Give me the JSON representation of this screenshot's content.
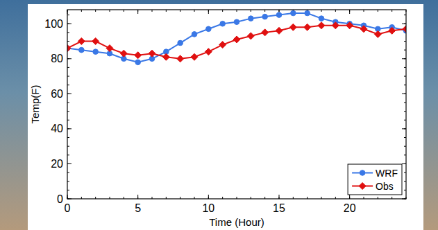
{
  "chart_data": {
    "type": "line",
    "x_label": "Time (Hour)",
    "y_label": "Temp(F)",
    "x": [
      0,
      1,
      2,
      3,
      4,
      5,
      6,
      7,
      8,
      9,
      10,
      11,
      12,
      13,
      14,
      15,
      16,
      17,
      18,
      19,
      20,
      21,
      22,
      23,
      24
    ],
    "series": [
      {
        "name": "WRF",
        "color": "#3a78e6",
        "marker": "circle",
        "line_style": "solid",
        "values": [
          86,
          85,
          84,
          83,
          80,
          78,
          80,
          84,
          89,
          94,
          97,
          100,
          101,
          103,
          104,
          105,
          106,
          106,
          103,
          101,
          100,
          99,
          97,
          98,
          96
        ]
      },
      {
        "name": "Obs",
        "color": "#e01010",
        "marker": "diamond",
        "line_style": "solid",
        "values": [
          86,
          90,
          90,
          86,
          83,
          82,
          83,
          81,
          80,
          81,
          84,
          88,
          91,
          93,
          95,
          96,
          98,
          98,
          99,
          99,
          99,
          97,
          94,
          96,
          97
        ]
      }
    ],
    "xlim": [
      0,
      24
    ],
    "xticks": [
      0,
      5,
      10,
      15,
      20
    ],
    "ylim": [
      0,
      108
    ],
    "yticks": [
      0,
      20,
      40,
      60,
      80,
      100
    ],
    "grid": false,
    "legend": "lower right"
  }
}
